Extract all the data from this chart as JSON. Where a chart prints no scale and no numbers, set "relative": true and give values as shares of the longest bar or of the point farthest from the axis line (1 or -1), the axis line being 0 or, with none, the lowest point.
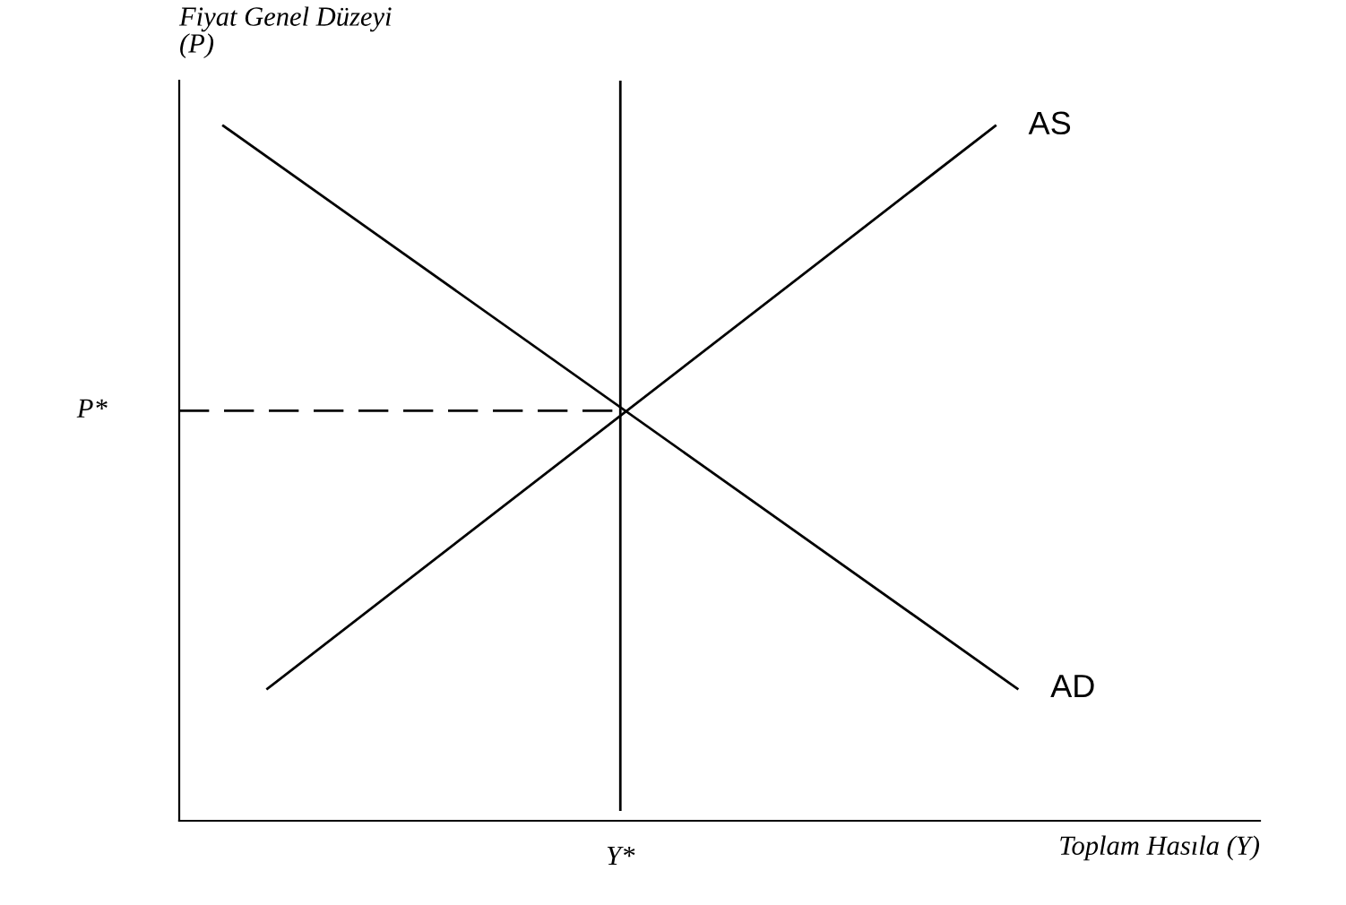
{
  "chart_data": {
    "type": "line",
    "relative": true,
    "xlabel": "Toplam Hasıla (Y)",
    "ylabel": "Fiyat Genel Düzeyi\n(P)",
    "legend": false,
    "marker": "none",
    "categories": [
      null,
      null,
      null,
      null,
      null,
      null,
      null,
      null,
      null,
      null,
      null,
      null,
      null,
      null,
      null,
      null,
      null,
      null,
      null,
      null,
      null,
      null,
      null,
      null,
      null,
      null,
      null,
      null,
      null,
      null,
      null,
      null,
      null,
      null,
      null,
      null,
      null,
      null,
      null,
      null,
      null,
      null,
      null,
      null,
      null,
      null,
      null,
      null,
      null,
      null
    ],
    "series": [
      {
        "name": "AD",
        "color": "#000000",
        "values": [
          null,
          null,
          1,
          null,
          null,
          null,
          null,
          null,
          null,
          null,
          null,
          null,
          null,
          null,
          null,
          null,
          null,
          null,
          null,
          null,
          null,
          null,
          null,
          null,
          null,
          null,
          null,
          null,
          null,
          null,
          null,
          null,
          null,
          null,
          null,
          null,
          null,
          null,
          0.19,
          null,
          null,
          null,
          null,
          null,
          null,
          null,
          null,
          null,
          null,
          null
        ]
      },
      {
        "name": "AS",
        "color": "#000000",
        "values": [
          null,
          null,
          null,
          null,
          0.19,
          null,
          null,
          null,
          null,
          null,
          null,
          null,
          null,
          null,
          null,
          null,
          null,
          null,
          null,
          null,
          null,
          null,
          null,
          null,
          null,
          null,
          null,
          null,
          null,
          null,
          null,
          null,
          null,
          null,
          null,
          null,
          null,
          1,
          null,
          null,
          null,
          null,
          null,
          null,
          null,
          null,
          null,
          null,
          null,
          null
        ]
      },
      {
        "color": "#000000",
        "line_style": "dashed",
        "values": [
          0.59,
          null,
          null,
          null,
          null,
          null,
          null,
          null,
          null,
          null,
          null,
          null,
          null,
          null,
          null,
          null,
          null,
          null,
          null,
          null,
          0.59,
          null,
          null,
          null,
          null,
          null,
          null,
          null,
          null,
          null,
          null,
          null,
          null,
          null,
          null,
          null,
          null,
          null,
          null,
          null,
          null,
          null,
          null,
          null,
          null,
          null,
          null,
          null,
          null,
          null
        ]
      }
    ],
    "annotations": [
      "P*",
      "Y*"
    ]
  }
}
